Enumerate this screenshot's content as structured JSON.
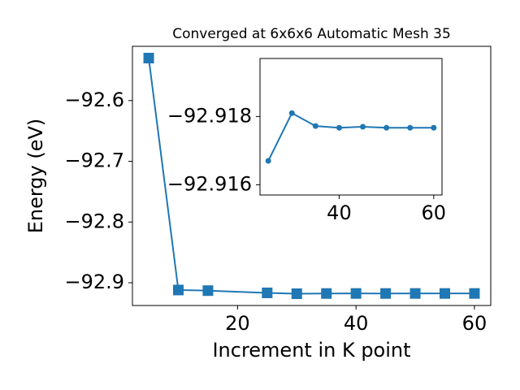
{
  "chart_data": [
    {
      "type": "line",
      "title": "Converged at 6x6x6 Automatic Mesh 35",
      "x_label": "Increment in K point",
      "y_label": "Energy (eV)",
      "x": [
        5,
        10,
        15,
        25,
        30,
        35,
        40,
        45,
        50,
        55,
        60
      ],
      "series": [
        {
          "color": "#1f77b4",
          "marker": "square",
          "values": [
            -92.53,
            -92.912,
            -92.913,
            -92.9167,
            -92.9181,
            -92.91772,
            -92.91767,
            -92.9177,
            -92.91767,
            -92.91767,
            -92.91767
          ]
        }
      ],
      "xlim": [
        2.25,
        62.75
      ],
      "ylim": [
        -92.9375,
        -92.5106
      ],
      "xticks": [
        20,
        40,
        60
      ],
      "yticks": [
        {
          "value": -92.6,
          "label": "−92.6"
        },
        {
          "value": -92.7,
          "label": "−92.7"
        },
        {
          "value": -92.8,
          "label": "−92.8"
        },
        {
          "value": -92.9,
          "label": "−92.9"
        }
      ]
    },
    {
      "type": "line",
      "x": [
        25,
        30,
        35,
        40,
        45,
        50,
        55,
        60
      ],
      "series": [
        {
          "color": "#1f77b4",
          "marker": "circle",
          "values": [
            -92.9167,
            -92.9181,
            -92.91772,
            -92.91767,
            -92.9177,
            -92.91767,
            -92.91767,
            -92.91767
          ]
        }
      ],
      "xlim": [
        23.25,
        61.75
      ],
      "ylim": [
        -92.9157,
        -92.9197
      ],
      "xticks": [
        40,
        60
      ],
      "yticks": [
        {
          "value": -92.918,
          "label": "−92.918"
        },
        {
          "value": -92.916,
          "label": "−92.916"
        }
      ]
    }
  ]
}
